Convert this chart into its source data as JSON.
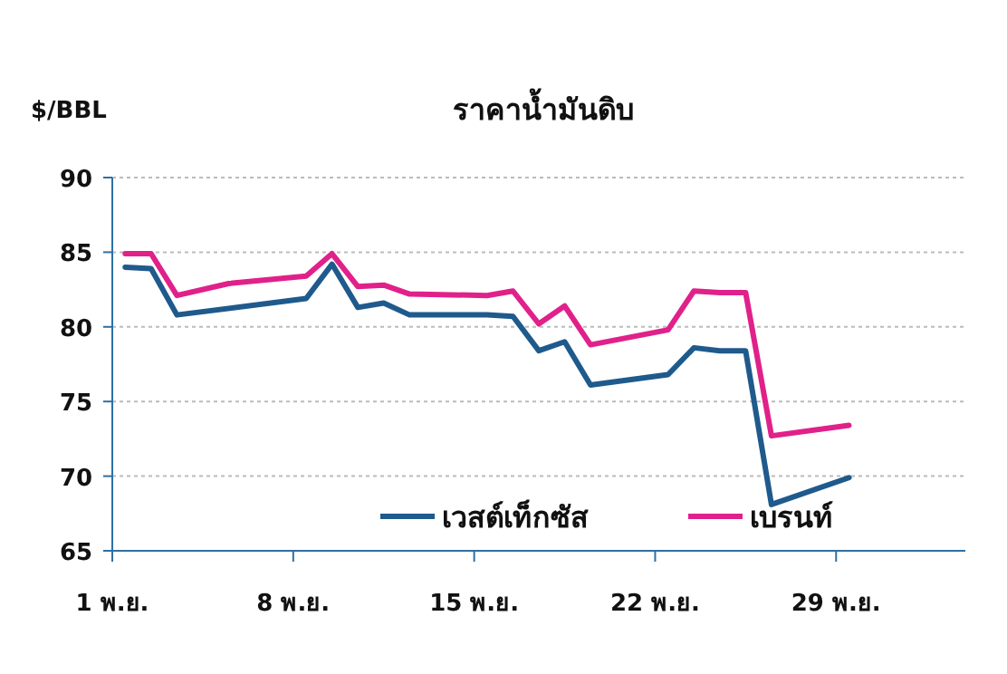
{
  "chart_data": {
    "type": "line",
    "title": "ราคาน้ำมันดิบ",
    "ylabel": "$/BBL",
    "xlim": [
      1,
      34
    ],
    "xticks": [
      {
        "value": 1,
        "label": "1 พ.ย."
      },
      {
        "value": 8,
        "label": "8 พ.ย."
      },
      {
        "value": 15,
        "label": "15 พ.ย."
      },
      {
        "value": 22,
        "label": "22 พ.ย."
      },
      {
        "value": 29,
        "label": "29 พ.ย."
      }
    ],
    "ylim": [
      65,
      90
    ],
    "yticks": [
      65,
      70,
      75,
      80,
      85,
      90
    ],
    "grid": "y",
    "legend": "bottom right",
    "marker": "none",
    "line_style": "solid",
    "series": [
      {
        "name": "เวสต์เท็กซัส",
        "color": "#1f5a8c",
        "x": [
          1.5,
          2.5,
          3.5,
          8.5,
          9.5,
          10.5,
          11.5,
          12.5,
          15.5,
          16.5,
          17.5,
          18.5,
          19.5,
          22.5,
          23.5,
          24.5,
          25.5,
          26.5,
          29.5
        ],
        "values": [
          84.0,
          83.9,
          80.8,
          81.9,
          84.2,
          81.3,
          81.6,
          80.8,
          80.8,
          80.7,
          78.4,
          79.0,
          76.1,
          76.8,
          78.6,
          78.4,
          78.4,
          68.1,
          69.9
        ]
      },
      {
        "name": "เบรนท์",
        "color": "#e0218a",
        "x": [
          1.5,
          2.5,
          3.5,
          5.5,
          8.5,
          9.5,
          10.5,
          11.5,
          12.5,
          15.5,
          16.5,
          17.5,
          18.5,
          19.5,
          22.5,
          23.5,
          24.5,
          25.5,
          26.5,
          29.5
        ],
        "values": [
          84.9,
          84.9,
          82.1,
          82.9,
          83.4,
          84.9,
          82.7,
          82.8,
          82.2,
          82.1,
          82.4,
          80.2,
          81.4,
          78.8,
          79.8,
          82.4,
          82.3,
          82.3,
          72.7,
          73.4
        ]
      }
    ]
  }
}
